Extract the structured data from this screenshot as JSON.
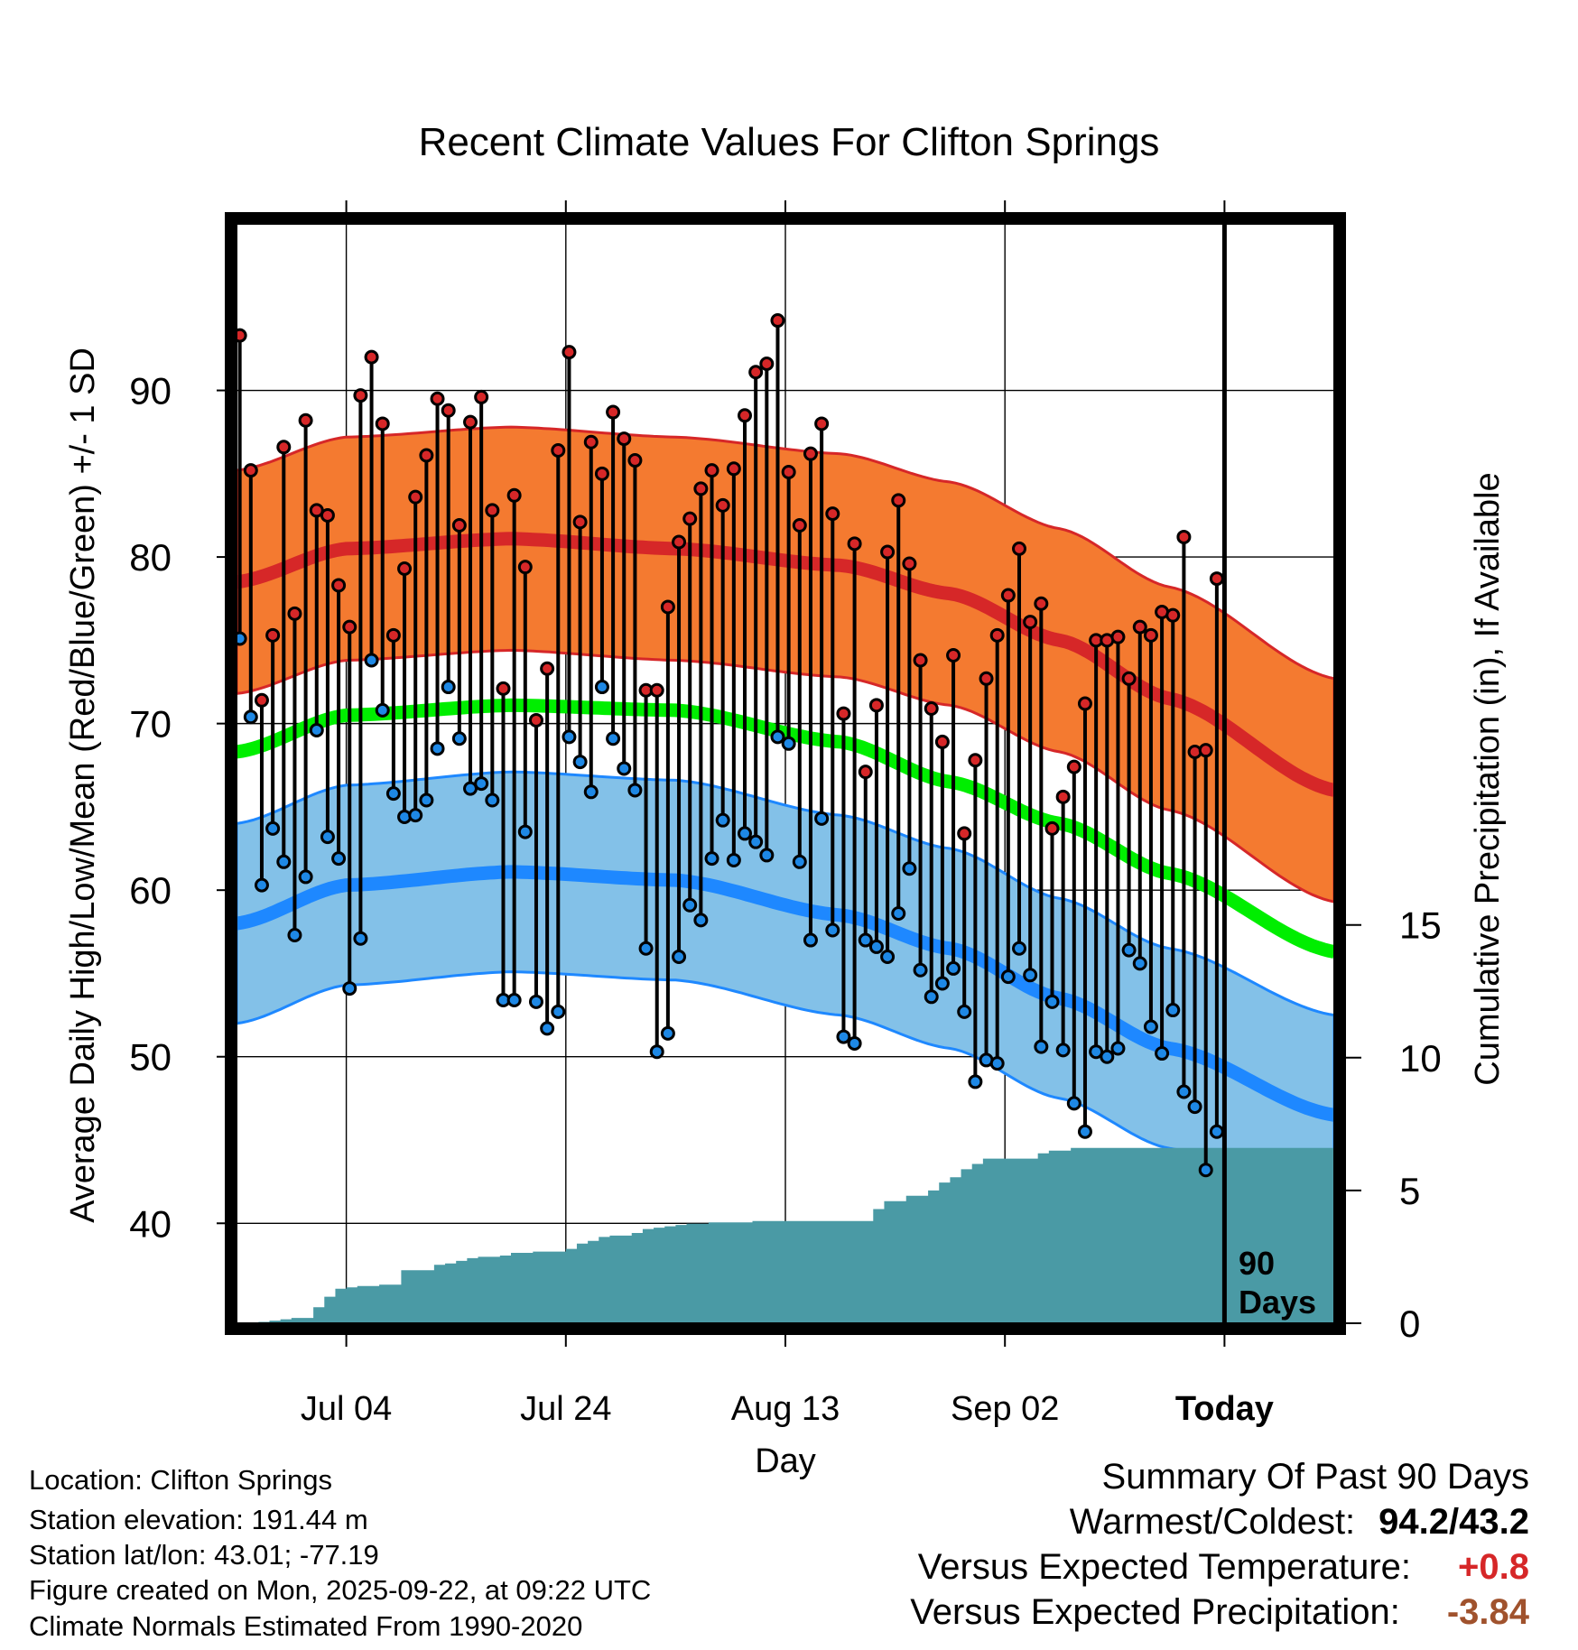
{
  "chart_data": {
    "type": "line",
    "title": "Recent Climate Values For Clifton Springs",
    "xlabel": "Day",
    "ylabel": "Average Daily High/Low/Mean (Red/Blue/Green) +/- 1 SD",
    "y2label": "Cumulative Precipitation (in), If Available",
    "ylim": [
      34,
      100
    ],
    "y2lim": [
      0,
      41.4
    ],
    "xlim": [
      0,
      100
    ],
    "x_ticks": [
      {
        "day": 10,
        "label": "Jul 04"
      },
      {
        "day": 30,
        "label": "Jul 24"
      },
      {
        "day": 50,
        "label": "Aug 13"
      },
      {
        "day": 70,
        "label": "Sep 02"
      },
      {
        "day": 90,
        "label": "Today"
      }
    ],
    "y_ticks": [
      40,
      50,
      60,
      70,
      80,
      90
    ],
    "y2_ticks": [
      0,
      5,
      10,
      15
    ],
    "today_day": 90,
    "today_label_line1": "90",
    "today_label_line2": "Days",
    "normal_high_knots": [
      [
        0,
        78.5
      ],
      [
        10,
        80.5
      ],
      [
        25,
        81.1
      ],
      [
        40,
        80.5
      ],
      [
        55,
        79.5
      ],
      [
        65,
        77.8
      ],
      [
        75,
        75.0
      ],
      [
        85,
        71.5
      ],
      [
        100,
        66.0
      ]
    ],
    "normal_low_knots": [
      [
        0,
        58.0
      ],
      [
        10,
        60.3
      ],
      [
        25,
        61.1
      ],
      [
        40,
        60.6
      ],
      [
        55,
        58.5
      ],
      [
        65,
        56.5
      ],
      [
        75,
        53.5
      ],
      [
        85,
        50.5
      ],
      [
        100,
        46.5
      ]
    ],
    "normal_mean_knots": [
      [
        0,
        68.3
      ],
      [
        10,
        70.5
      ],
      [
        25,
        71.1
      ],
      [
        40,
        70.8
      ],
      [
        55,
        68.9
      ],
      [
        65,
        66.5
      ],
      [
        75,
        64.0
      ],
      [
        85,
        61.0
      ],
      [
        100,
        56.3
      ]
    ],
    "sd_high": 6.7,
    "sd_low": 6.0,
    "series": [
      {
        "name": "Daily High",
        "color": "#d62728",
        "values": [
          93.3,
          85.2,
          71.4,
          75.3,
          86.6,
          76.6,
          88.2,
          82.8,
          82.5,
          78.3,
          75.8,
          89.7,
          92.0,
          88.0,
          75.3,
          79.3,
          83.6,
          86.1,
          89.5,
          88.8,
          81.9,
          88.1,
          89.6,
          82.8,
          72.1,
          83.7,
          79.4,
          70.2,
          73.3,
          86.4,
          92.3,
          82.1,
          86.9,
          85.0,
          88.7,
          87.1,
          85.8,
          72.0,
          72.0,
          77.0,
          80.9,
          82.3,
          84.1,
          85.2,
          83.1,
          85.3,
          88.5,
          91.1,
          91.6,
          94.2,
          85.1,
          81.9,
          86.2,
          88.0,
          82.6,
          70.6,
          80.8,
          67.1,
          71.1,
          80.3,
          83.4,
          79.6,
          73.8,
          70.9,
          68.9,
          74.1,
          63.4,
          67.8,
          72.7,
          75.3,
          77.7,
          80.5,
          76.1,
          77.2,
          63.7,
          65.6,
          67.4,
          71.2,
          75.0,
          75.0,
          75.2,
          72.7,
          75.8,
          75.3,
          76.7,
          76.5,
          81.2,
          68.3,
          68.4,
          78.7
        ]
      },
      {
        "name": "Daily Low",
        "color": "#1e88e5",
        "values": [
          75.1,
          70.4,
          60.3,
          63.7,
          61.7,
          57.3,
          60.8,
          69.6,
          63.2,
          61.9,
          54.1,
          57.1,
          73.8,
          70.8,
          65.8,
          64.4,
          64.5,
          65.4,
          68.5,
          72.2,
          69.1,
          66.1,
          66.4,
          65.4,
          53.4,
          53.4,
          63.5,
          53.3,
          51.7,
          52.7,
          69.2,
          67.7,
          65.9,
          72.2,
          69.1,
          67.3,
          66.0,
          56.5,
          50.3,
          51.4,
          56.0,
          59.1,
          58.2,
          61.9,
          64.2,
          61.8,
          63.4,
          62.9,
          62.1,
          69.2,
          68.8,
          61.7,
          57.0,
          64.3,
          57.6,
          51.2,
          50.8,
          57.0,
          56.6,
          56.0,
          58.6,
          61.3,
          55.2,
          53.6,
          54.4,
          55.3,
          52.7,
          48.5,
          49.8,
          49.6,
          54.8,
          56.5,
          54.9,
          50.6,
          53.3,
          50.4,
          47.2,
          45.5,
          50.3,
          50.0,
          50.5,
          56.4,
          55.6,
          51.8,
          50.2,
          52.8,
          47.9,
          47.0,
          43.2,
          45.5
        ]
      },
      {
        "name": "Cumulative Precipitation (in)",
        "color": "#4a9aa5",
        "values": [
          0,
          0,
          0.05,
          0.1,
          0.15,
          0.2,
          0.2,
          0.6,
          1.0,
          1.3,
          1.35,
          1.4,
          1.4,
          1.45,
          1.45,
          2.0,
          2.0,
          2.0,
          2.2,
          2.25,
          2.35,
          2.45,
          2.5,
          2.5,
          2.55,
          2.65,
          2.65,
          2.7,
          2.7,
          2.7,
          2.8,
          3.0,
          3.1,
          3.25,
          3.3,
          3.3,
          3.4,
          3.55,
          3.6,
          3.65,
          3.7,
          3.75,
          3.75,
          3.8,
          3.8,
          3.8,
          3.8,
          3.85,
          3.85,
          3.85,
          3.85,
          3.85,
          3.85,
          3.85,
          3.85,
          3.85,
          3.85,
          3.85,
          4.3,
          4.6,
          4.6,
          4.8,
          4.8,
          5.0,
          5.3,
          5.5,
          5.8,
          6.0,
          6.2,
          6.2,
          6.2,
          6.2,
          6.2,
          6.4,
          6.5,
          6.5,
          6.6,
          6.6,
          6.6,
          6.6,
          6.6,
          6.6,
          6.6,
          6.6,
          6.6,
          6.6,
          6.6,
          6.6,
          6.6,
          6.6,
          6.6,
          6.6,
          6.6,
          6.6,
          6.6,
          6.6,
          6.6,
          6.6,
          6.6,
          6.6,
          6.6
        ]
      }
    ]
  },
  "station": {
    "location": "Location: Clifton Springs",
    "elevation": "Station elevation: 191.44 m",
    "latlon": "Station lat/lon: 43.01; -77.19",
    "created": "Figure created on Mon, 2025-09-22, at 09:22 UTC",
    "normals": "Climate Normals Estimated From 1990-2020"
  },
  "summary": {
    "title": "Summary Of Past 90 Days",
    "warmest_label": "Warmest/Coldest:",
    "warmest_value": "94.2/43.2",
    "temp_label": "Versus Expected Temperature:",
    "temp_value": "+0.8",
    "temp_color": "#d62728",
    "precip_label": "Versus Expected Precipitation:",
    "precip_value": "-3.84",
    "precip_color": "#a0522d"
  },
  "colors": {
    "high_band": "#f47a30",
    "high_line": "#d62728",
    "low_band": "#83c1e8",
    "low_line": "#1e88ff",
    "mean_line": "#00ee00",
    "precip": "#4a9aa5"
  }
}
